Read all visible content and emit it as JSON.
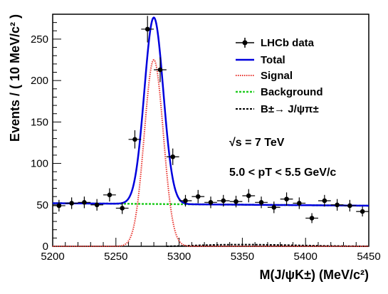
{
  "chart_data": {
    "type": "scatter",
    "xlabel": "M(J/ψK±) (MeV/c²)",
    "ylabel": "Events / ( 10 MeV/c² )",
    "xlim": [
      5200,
      5450
    ],
    "ylim": [
      0,
      280
    ],
    "x_ticks": [
      5200,
      5250,
      5300,
      5350,
      5400,
      5450
    ],
    "y_ticks": [
      0,
      50,
      100,
      150,
      200,
      250
    ],
    "x_tick_labels": [
      "5200",
      "5250",
      "5300",
      "5350",
      "5400",
      "5450"
    ],
    "y_tick_labels": [
      "0",
      "50",
      "100",
      "150",
      "200",
      "250"
    ],
    "legend_position": "top-right",
    "annotations": [
      "√s = 7 TeV",
      "5.0 < pT < 5.5 GeV/c"
    ],
    "series": [
      {
        "name": "LHCb data",
        "kind": "points",
        "color": "#000000",
        "x": [
          5205,
          5215,
          5225,
          5235,
          5245,
          5255,
          5265,
          5275,
          5285,
          5295,
          5305,
          5315,
          5325,
          5335,
          5345,
          5355,
          5365,
          5375,
          5385,
          5395,
          5405,
          5415,
          5425,
          5435,
          5445
        ],
        "y": [
          49,
          52,
          53,
          50,
          62,
          46,
          129,
          262,
          213,
          108,
          55,
          60,
          53,
          55,
          54,
          61,
          53,
          47,
          57,
          52,
          34,
          55,
          50,
          49,
          42
        ],
        "yerr": [
          7,
          7,
          7,
          7,
          8,
          7,
          11,
          16,
          15,
          10,
          7,
          8,
          7,
          7,
          7,
          8,
          7,
          7,
          8,
          7,
          6,
          7,
          7,
          7,
          6
        ]
      },
      {
        "name": "Total",
        "kind": "curve",
        "color": "#0000dd",
        "background": {
          "a": 52,
          "slope": -0.012,
          "x0": 5200
        },
        "peak": {
          "mean": 5280,
          "sigma": 7.5,
          "amp": 225
        }
      },
      {
        "name": "Signal",
        "kind": "curve",
        "color": "#e8352f",
        "peak": {
          "mean": 5280,
          "sigma": 7.5,
          "amp": 225
        }
      },
      {
        "name": "Background",
        "kind": "line",
        "color": "#22cc22",
        "background": {
          "a": 52,
          "slope": -0.012,
          "x0": 5200
        }
      },
      {
        "name": "B±→ J/ψπ±",
        "kind": "curve",
        "color": "#000000",
        "x": [
          5290,
          5300,
          5310,
          5320,
          5330,
          5340,
          5350,
          5360,
          5370,
          5380,
          5390,
          5400,
          5410,
          5420,
          5430,
          5440,
          5450
        ],
        "y": [
          0,
          0.4,
          0.9,
          1.4,
          1.8,
          2.0,
          2.1,
          2.0,
          1.8,
          1.6,
          1.3,
          1.0,
          0.7,
          0.5,
          0.3,
          0.15,
          0.05
        ]
      }
    ]
  }
}
